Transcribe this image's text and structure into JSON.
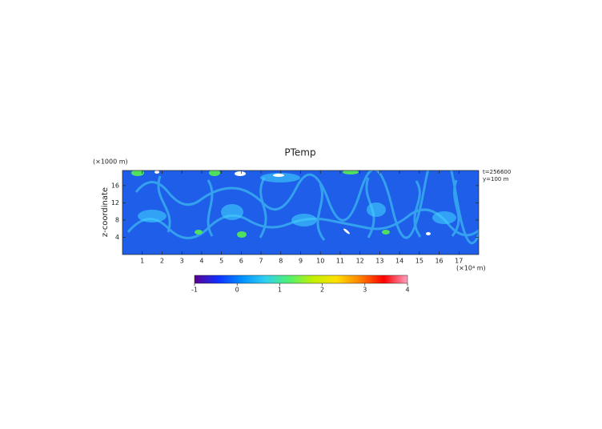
{
  "chart_data": {
    "type": "heatmap",
    "title": "PTemp",
    "x_unit_label": "(×10⁴ m)",
    "y_unit_label": "(×1000 m)",
    "y_label": "z-coordinate",
    "annotations": [
      "t=256600",
      "y=100 m"
    ],
    "xlim": [
      0,
      18
    ],
    "xticks": [
      1,
      2,
      3,
      4,
      5,
      6,
      7,
      8,
      9,
      10,
      11,
      12,
      13,
      14,
      15,
      16,
      17
    ],
    "ylim": [
      0,
      19.5
    ],
    "yticks": [
      4,
      8,
      12,
      16
    ],
    "colorbar": {
      "lim": [
        -1,
        4
      ],
      "ticks": [
        -1,
        0,
        1,
        2,
        3,
        4
      ],
      "colormap": [
        "#5a0090",
        "#1030ff",
        "#0090ff",
        "#30d0f0",
        "#50f070",
        "#c0f000",
        "#ffe000",
        "#ff8000",
        "#ff0000",
        "#ffa0c0"
      ]
    }
  }
}
